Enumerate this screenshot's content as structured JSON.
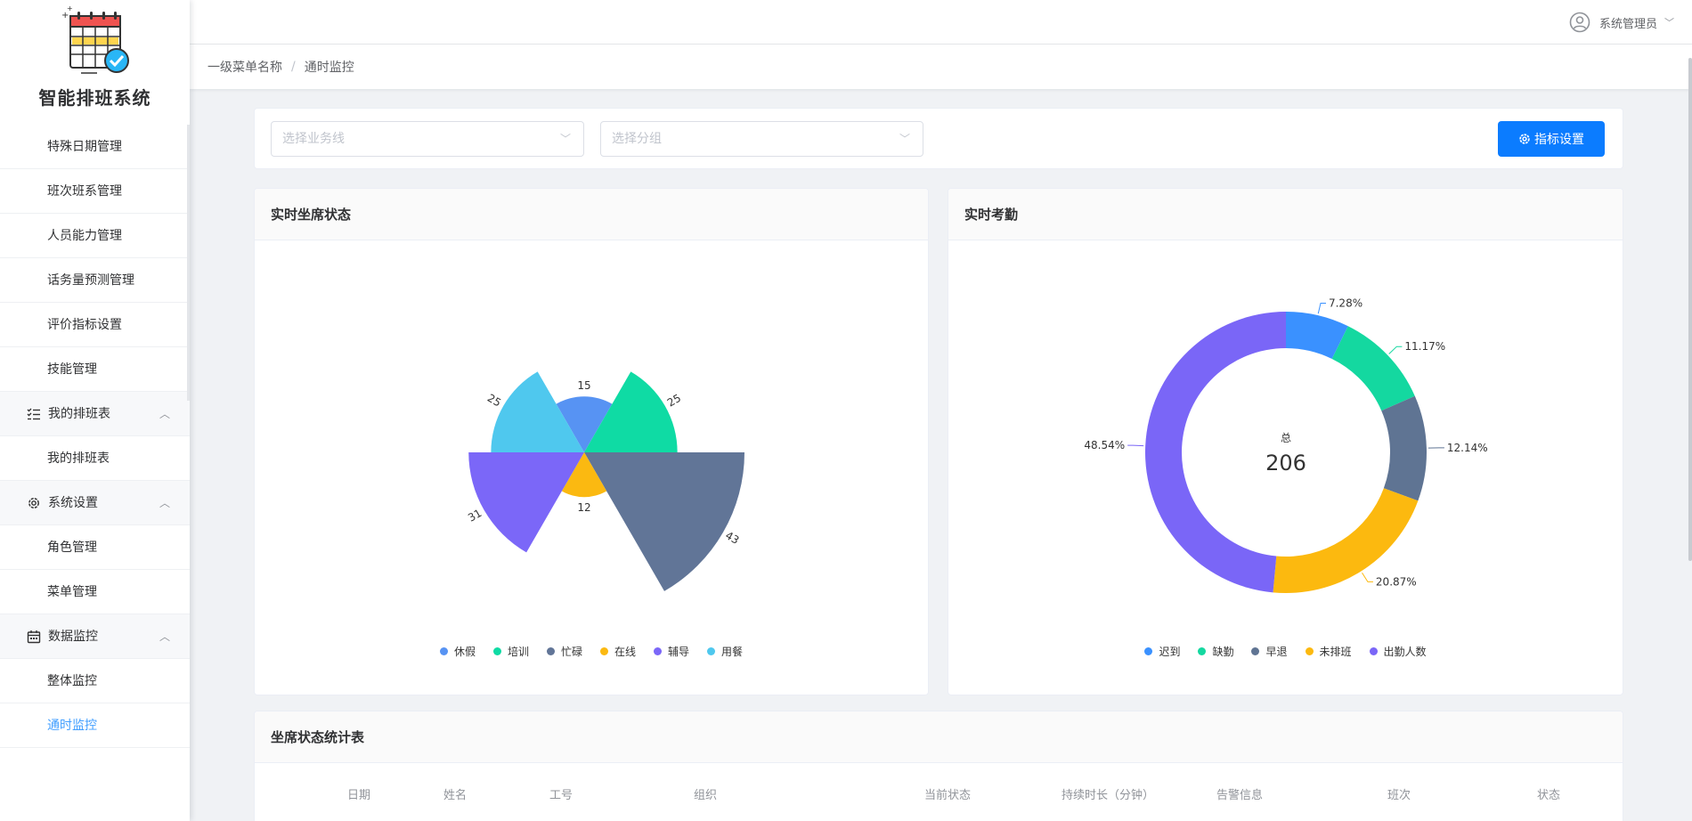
{
  "app": {
    "title": "智能排班系统"
  },
  "header": {
    "user_name": "系统管理员"
  },
  "breadcrumb": {
    "level1": "一级菜单名称",
    "separator": "/",
    "current": "通时监控"
  },
  "sidebar": {
    "items": [
      {
        "label": "特殊日期管理",
        "type": "item"
      },
      {
        "label": "班次班系管理",
        "type": "item"
      },
      {
        "label": "人员能力管理",
        "type": "item"
      },
      {
        "label": "话务量预测管理",
        "type": "item"
      },
      {
        "label": "评价指标设置",
        "type": "item"
      },
      {
        "label": "技能管理",
        "type": "item"
      },
      {
        "label": "我的排班表",
        "type": "group",
        "icon": "list-check-icon"
      },
      {
        "label": "我的排班表",
        "type": "item"
      },
      {
        "label": "系统设置",
        "type": "group",
        "icon": "gear-icon"
      },
      {
        "label": "角色管理",
        "type": "item"
      },
      {
        "label": "菜单管理",
        "type": "item"
      },
      {
        "label": "数据监控",
        "type": "group",
        "icon": "calendar-icon"
      },
      {
        "label": "整体监控",
        "type": "item"
      },
      {
        "label": "通时监控",
        "type": "item",
        "active": true
      }
    ]
  },
  "filters": {
    "business_line_placeholder": "选择业务线",
    "group_placeholder": "选择分组",
    "indicator_button": "指标设置"
  },
  "seat_status_card": {
    "title": "实时坐席状态"
  },
  "attendance_card": {
    "title": "实时考勤",
    "center_label": "总",
    "center_value": "206"
  },
  "table_card": {
    "title": "坐席状态统计表",
    "columns": [
      "日期",
      "姓名",
      "工号",
      "组织",
      "当前状态",
      "持续时长（分钟）",
      "告警信息",
      "班次",
      "状态"
    ]
  },
  "colors": {
    "primary": "#0b7cff",
    "active_menu": "#409eff"
  },
  "chart_data": [
    {
      "type": "pie",
      "variant": "rose",
      "categories": [
        "休假",
        "培训",
        "忙碌",
        "在线",
        "辅导",
        "用餐"
      ],
      "values": [
        15,
        25,
        43,
        12,
        31,
        25
      ],
      "colors": [
        "#5793f3",
        "#0fdba4",
        "#617597",
        "#fbb911",
        "#7b67f8",
        "#4fc8ee"
      ],
      "legend": "bottom-center"
    },
    {
      "type": "pie",
      "variant": "donut",
      "categories": [
        "迟到",
        "缺勤",
        "早退",
        "未排班",
        "出勤人数"
      ],
      "values": [
        7.28,
        11.17,
        12.14,
        20.87,
        48.54
      ],
      "labels": [
        "7.28%",
        "11.17%",
        "12.14%",
        "20.87%",
        "48.54%"
      ],
      "colors": [
        "#3a91ff",
        "#14d8a0",
        "#5f7493",
        "#fcb90f",
        "#7a66f7"
      ],
      "legend": "bottom-center"
    }
  ]
}
